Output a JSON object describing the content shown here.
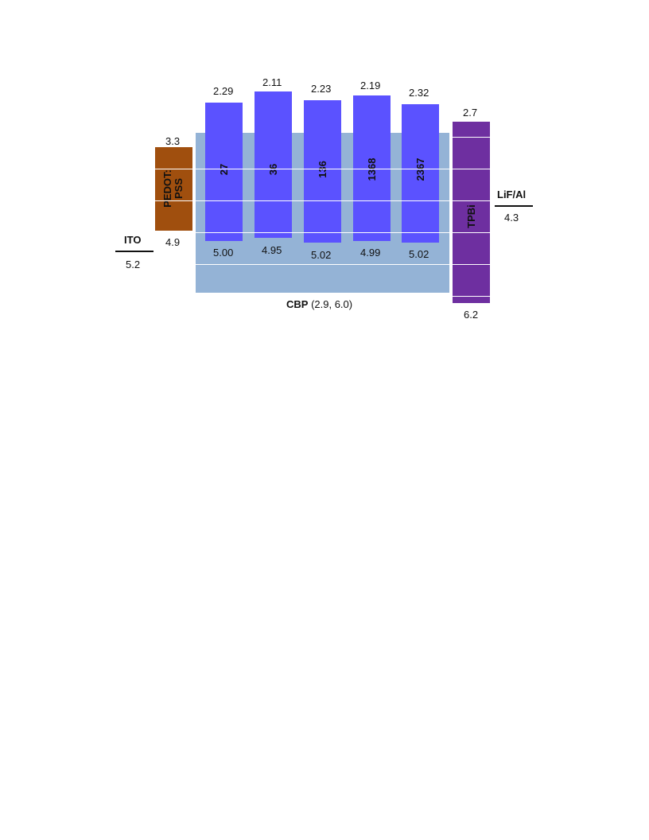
{
  "ito": {
    "label": "ITO",
    "value": "5.2"
  },
  "pedot": {
    "label_line1": "PEDOT:",
    "label_line2": "PSS",
    "lumo": "3.3",
    "homo": "4.9",
    "color": "#A04F0E"
  },
  "cbp": {
    "label": "CBP",
    "values": "(2.9, 6.0)",
    "color": "#94B3D6"
  },
  "dopants": [
    {
      "label": "27",
      "lumo": "2.29",
      "homo": "5.00"
    },
    {
      "label": "36",
      "lumo": "2.11",
      "homo": "4.95"
    },
    {
      "label": "136",
      "lumo": "2.23",
      "homo": "5.02"
    },
    {
      "label": "1368",
      "lumo": "2.19",
      "homo": "4.99"
    },
    {
      "label": "2367",
      "lumo": "2.32",
      "homo": "5.02"
    }
  ],
  "dopant_color": "#5B52FF",
  "tpbi": {
    "label": "TPBi",
    "lumo": "2.7",
    "homo": "6.2",
    "color": "#6E2FA0"
  },
  "cathode": {
    "label": "LiF/Al",
    "value": "4.3"
  }
}
